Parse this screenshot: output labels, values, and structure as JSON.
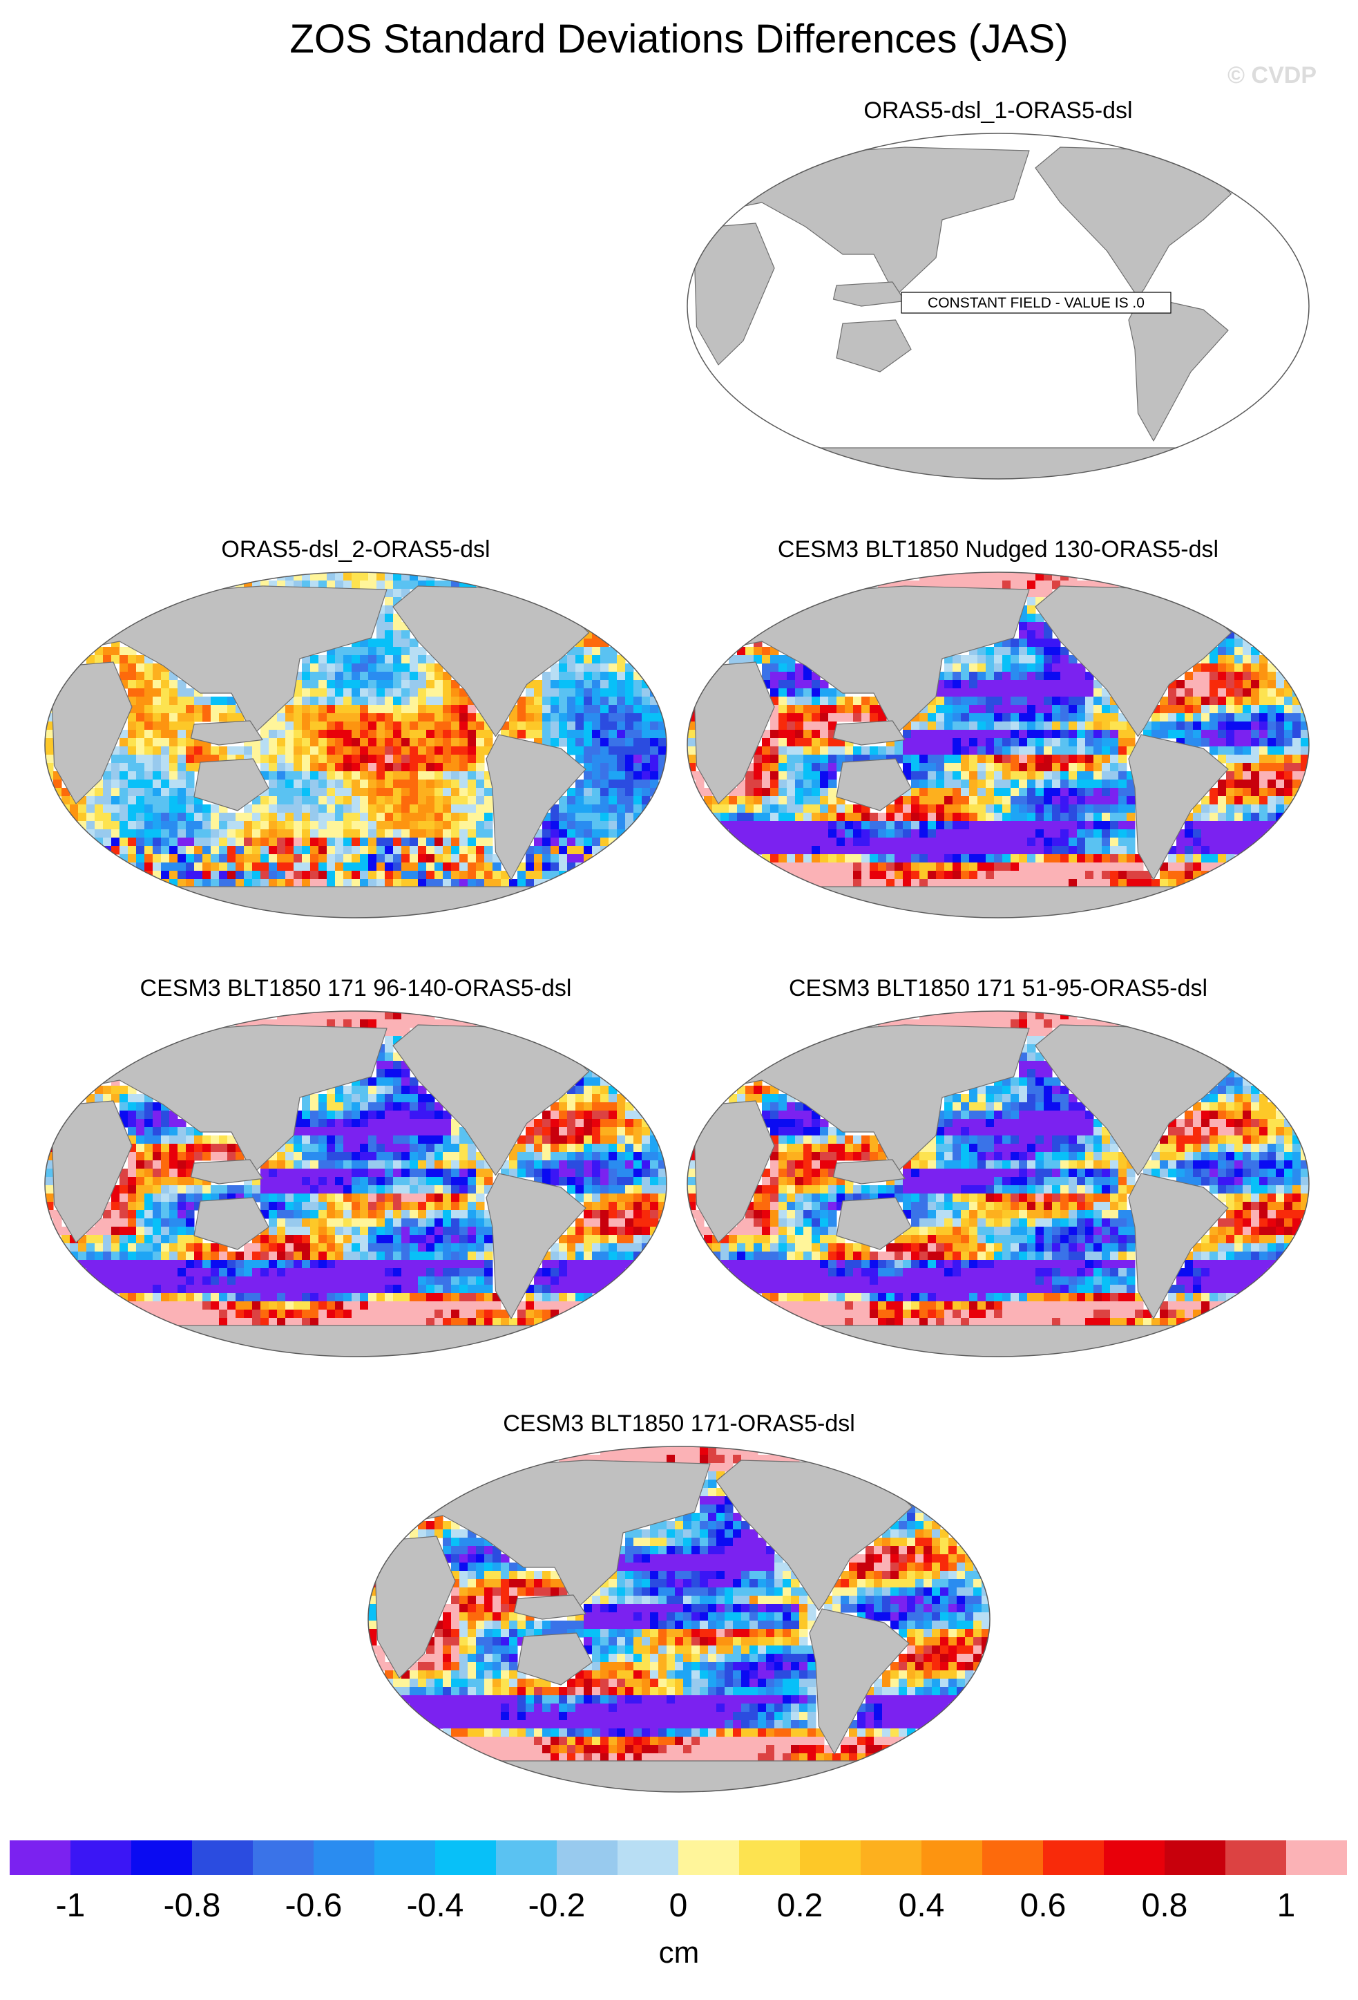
{
  "title": "ZOS Standard Deviations Differences (JAS)",
  "watermark": "© CVDP",
  "colors": {
    "ocean_background": "#ffffff",
    "land": "#c0c0c0",
    "coast": "#6e6e6e"
  },
  "panels": [
    {
      "title": "ORAS5-dsl_1-ORAS5-dsl",
      "field": "constant",
      "label": "CONSTANT FIELD - VALUE IS .0"
    },
    {
      "title": "ORAS5-dsl_2-ORAS5-dsl",
      "field": "noise"
    },
    {
      "title": "CESM3 BLT1850 Nudged 130-ORAS5-dsl",
      "field": "model"
    },
    {
      "title": "CESM3 BLT1850 171 96-140-ORAS5-dsl",
      "field": "model"
    },
    {
      "title": "CESM3 BLT1850 171 51-95-ORAS5-dsl",
      "field": "model"
    },
    {
      "title": "CESM3 BLT1850 171-ORAS5-dsl",
      "field": "model"
    }
  ],
  "colorbar": {
    "unit": "cm",
    "colors": [
      "#7b22f0",
      "#3b16f5",
      "#0a0bf2",
      "#2b4ce0",
      "#3a73e8",
      "#2a8cf0",
      "#1ea5f5",
      "#08c0f8",
      "#5ac2f2",
      "#98caee",
      "#b8def4",
      "#fff59a",
      "#fde350",
      "#fdc828",
      "#fdb01e",
      "#fd9410",
      "#fd6a0c",
      "#f82a0a",
      "#e8000a",
      "#c8000c",
      "#dc4242",
      "#fbb2b6"
    ],
    "tick_labels": [
      "-1",
      "-0.8",
      "-0.6",
      "-0.4",
      "-0.2",
      "0",
      "0.2",
      "0.4",
      "0.6",
      "0.8",
      "1"
    ],
    "min": -1.1,
    "max": 1.1,
    "tick_values": [
      -1,
      -0.8,
      -0.6,
      -0.4,
      -0.2,
      0,
      0.2,
      0.4,
      0.6,
      0.8,
      1
    ]
  }
}
